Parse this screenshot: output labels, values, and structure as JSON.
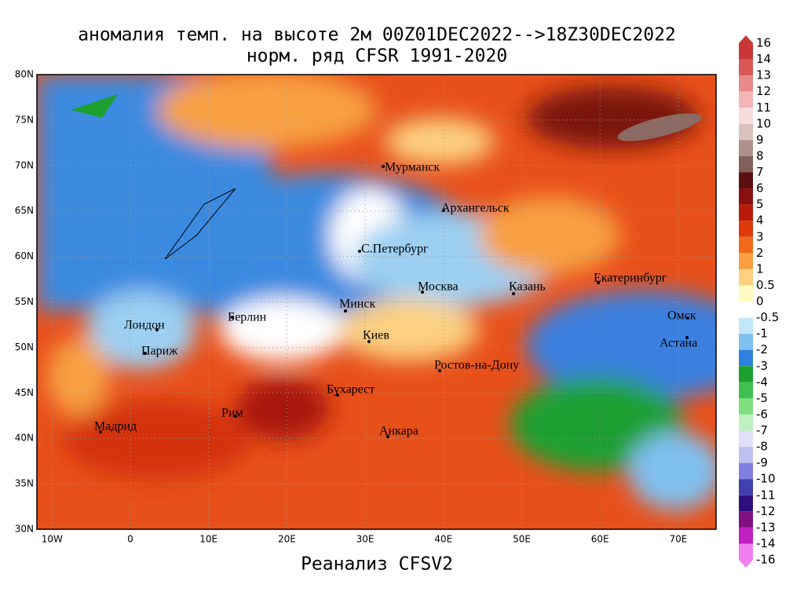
{
  "header": {
    "title": "аномалия темп. на высоте 2м 00Z01DEC2022-->18Z30DEC2022",
    "subtitle": "норм. ряд CFSR 1991-2020"
  },
  "footer": "Реанализ CFSV2",
  "map": {
    "lat_labels": [
      {
        "value": 80,
        "label": "80N"
      },
      {
        "value": 75,
        "label": "75N"
      },
      {
        "value": 70,
        "label": "70N"
      },
      {
        "value": 65,
        "label": "65N"
      },
      {
        "value": 60,
        "label": "60N"
      },
      {
        "value": 55,
        "label": "55N"
      },
      {
        "value": 50,
        "label": "50N"
      },
      {
        "value": 45,
        "label": "45N"
      },
      {
        "value": 40,
        "label": "40N"
      },
      {
        "value": 35,
        "label": "35N"
      },
      {
        "value": 30,
        "label": "30N"
      }
    ],
    "lon_labels": [
      {
        "value": -10,
        "label": "10W"
      },
      {
        "value": 0,
        "label": "0"
      },
      {
        "value": 10,
        "label": "10E"
      },
      {
        "value": 20,
        "label": "20E"
      },
      {
        "value": 30,
        "label": "30E"
      },
      {
        "value": 40,
        "label": "40E"
      },
      {
        "value": 50,
        "label": "50E"
      },
      {
        "value": 60,
        "label": "60E"
      },
      {
        "value": 70,
        "label": "70E"
      }
    ],
    "cities": [
      "Мурманск",
      "Архангельск",
      "С.Петербург",
      "Москва",
      "Казань",
      "Екатеринбург",
      "Омск",
      "Астана",
      "Минск",
      "Берлин",
      "Лондон",
      "Париж",
      "Киев",
      "Ростов-на-Дону",
      "Бухарест",
      "Рим",
      "Мадрид",
      "Анкара"
    ]
  },
  "legend": {
    "labels": [
      "16",
      "14",
      "13",
      "12",
      "11",
      "10",
      "9",
      "8",
      "7",
      "6",
      "5",
      "4",
      "3",
      "2",
      "1",
      "0.5",
      "0",
      "-0.5",
      "-1",
      "-2",
      "-3",
      "-4",
      "-5",
      "-6",
      "-7",
      "-8",
      "-9",
      "-10",
      "-11",
      "-12",
      "-13",
      "-14",
      "-16"
    ],
    "colors": [
      "#c83838",
      "#d85858",
      "#e88a8a",
      "#f2b6b6",
      "#f8dcdc",
      "#d8c2ba",
      "#b09088",
      "#806058",
      "#5a1010",
      "#8a1010",
      "#b81a0a",
      "#dc3a0a",
      "#f06a1a",
      "#f8a040",
      "#fcd080",
      "#fffbc0",
      "#ffffff",
      "#c0e8f8",
      "#80c0f0",
      "#3080e0",
      "#1ca030",
      "#40c050",
      "#80e080",
      "#c0f0c0",
      "#e0e0f8",
      "#c0c0f0",
      "#8080e0",
      "#4040b0",
      "#301080",
      "#801080",
      "#c020c0",
      "#f080f0"
    ]
  }
}
